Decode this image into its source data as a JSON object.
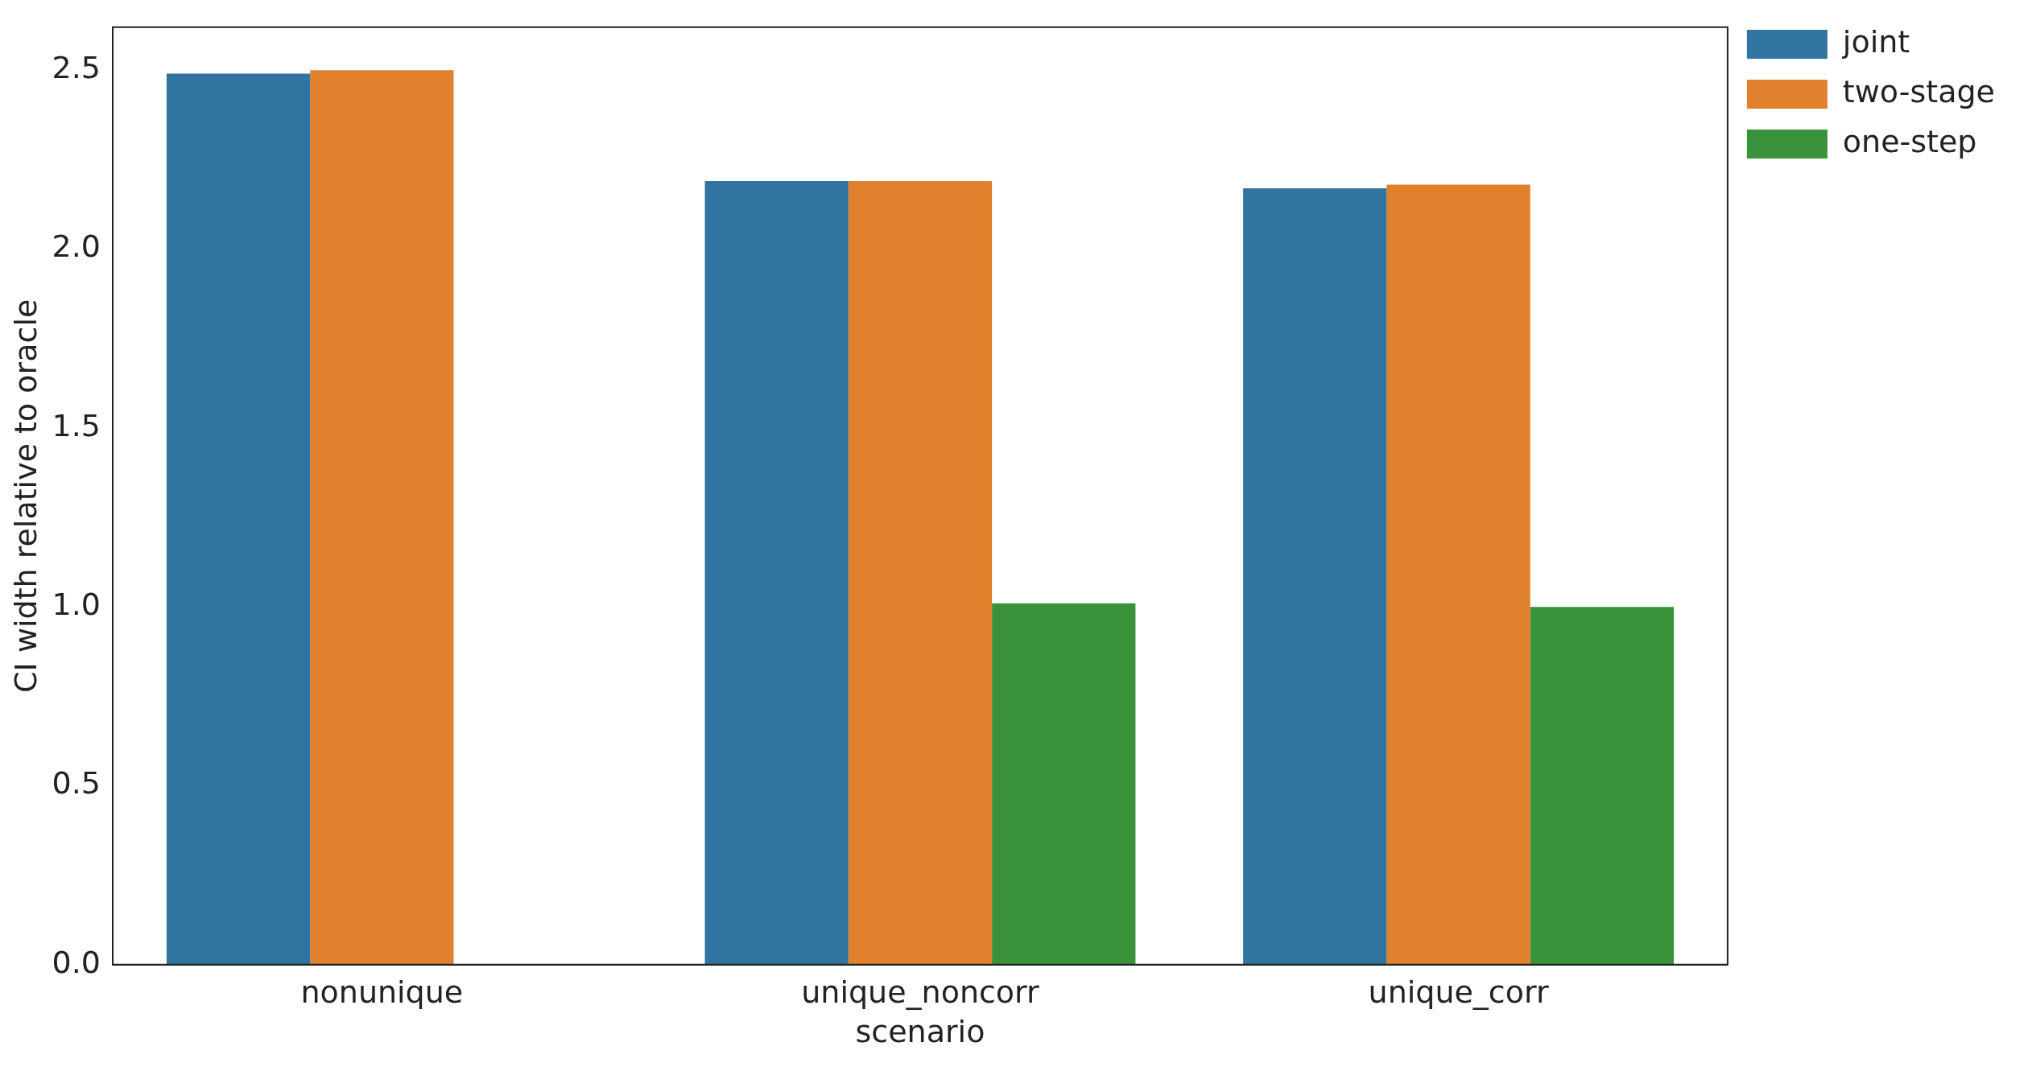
{
  "chart_data": {
    "type": "bar",
    "xlabel": "scenario",
    "ylabel": "CI width relative to oracle",
    "categories": [
      "nonunique",
      "unique_noncorr",
      "unique_corr"
    ],
    "series": [
      {
        "name": "joint",
        "color": "#3274a1",
        "values": [
          2.49,
          2.19,
          2.17
        ]
      },
      {
        "name": "two-stage",
        "color": "#e1812c",
        "values": [
          2.5,
          2.19,
          2.18
        ]
      },
      {
        "name": "one-step",
        "color": "#3a923a",
        "values": [
          null,
          1.01,
          1.0
        ]
      }
    ],
    "ylim": [
      0,
      2.62
    ],
    "yticks": [
      {
        "value": 0,
        "label": "0.0"
      },
      {
        "value": 0.5,
        "label": "0.5"
      },
      {
        "value": 1,
        "label": "1.0"
      },
      {
        "value": 1.5,
        "label": "1.5"
      },
      {
        "value": 2,
        "label": "2.0"
      },
      {
        "value": 2.5,
        "label": "2.5"
      }
    ],
    "grid": false,
    "legend": "top right"
  }
}
